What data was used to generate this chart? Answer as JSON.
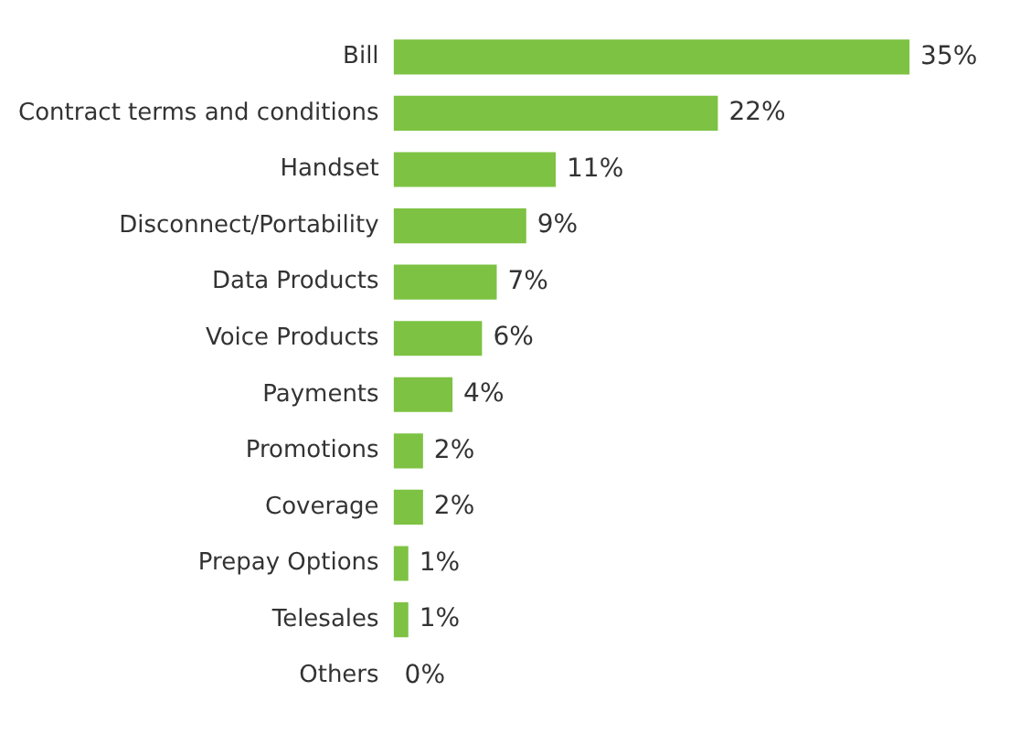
{
  "chart_data": {
    "type": "bar",
    "orientation": "horizontal",
    "categories": [
      "Bill",
      "Contract terms and conditions",
      "Handset",
      "Disconnect/Portability",
      "Data Products",
      "Voice Products",
      "Payments",
      "Promotions",
      "Coverage",
      "Prepay Options",
      "Telesales",
      "Others"
    ],
    "values": [
      35,
      22,
      11,
      9,
      7,
      6,
      4,
      2,
      2,
      1,
      1,
      0
    ],
    "value_labels": [
      "35%",
      "22%",
      "11%",
      "9%",
      "7%",
      "6%",
      "4%",
      "2%",
      "2%",
      "1%",
      "1%",
      "0%"
    ],
    "color": "#7dc242",
    "grid": false,
    "tick_labels": "y"
  }
}
